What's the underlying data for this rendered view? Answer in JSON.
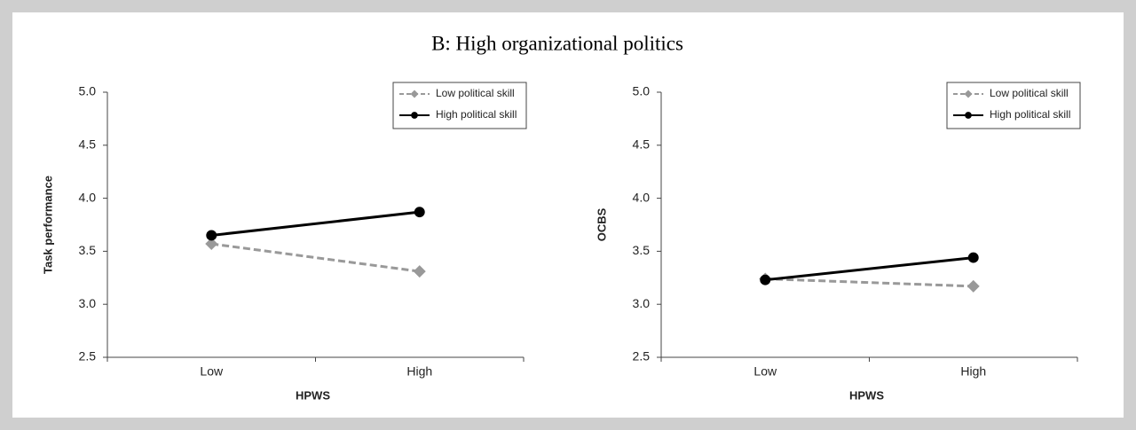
{
  "title": "B: High organizational politics",
  "chart_data": [
    {
      "type": "line",
      "ylabel": "Task performance",
      "xlabel": "HPWS",
      "categories": [
        "Low",
        "High"
      ],
      "ylim": [
        2.5,
        5.0
      ],
      "yticks": [
        2.5,
        {
          "value": 3,
          "label": "3.0"
        },
        3.5,
        {
          "value": 4,
          "label": "4.0"
        },
        4.5,
        {
          "value": 5,
          "label": "5.0"
        }
      ],
      "legend": "upper right",
      "series": [
        {
          "name": "Low political skill",
          "color": "#999999",
          "linestyle": "dashed",
          "marker": "diamond",
          "values": [
            3.57,
            3.31
          ]
        },
        {
          "name": "High political skill",
          "color": "#000000",
          "linestyle": "solid",
          "marker": "circle",
          "values": [
            3.65,
            3.87
          ]
        }
      ]
    },
    {
      "type": "line",
      "ylabel": "OCBS",
      "xlabel": "HPWS",
      "categories": [
        "Low",
        "High"
      ],
      "ylim": [
        2.5,
        5.0
      ],
      "yticks": [
        2.5,
        {
          "value": 3,
          "label": "3.0"
        },
        3.5,
        {
          "value": 4,
          "label": "4.0"
        },
        4.5,
        {
          "value": 5,
          "label": "5.0"
        }
      ],
      "legend": "upper right",
      "series": [
        {
          "name": "Low political skill",
          "color": "#999999",
          "linestyle": "dashed",
          "marker": "diamond",
          "values": [
            3.24,
            3.17
          ]
        },
        {
          "name": "High political skill",
          "color": "#000000",
          "linestyle": "solid",
          "marker": "circle",
          "values": [
            3.23,
            3.44
          ]
        }
      ]
    }
  ]
}
